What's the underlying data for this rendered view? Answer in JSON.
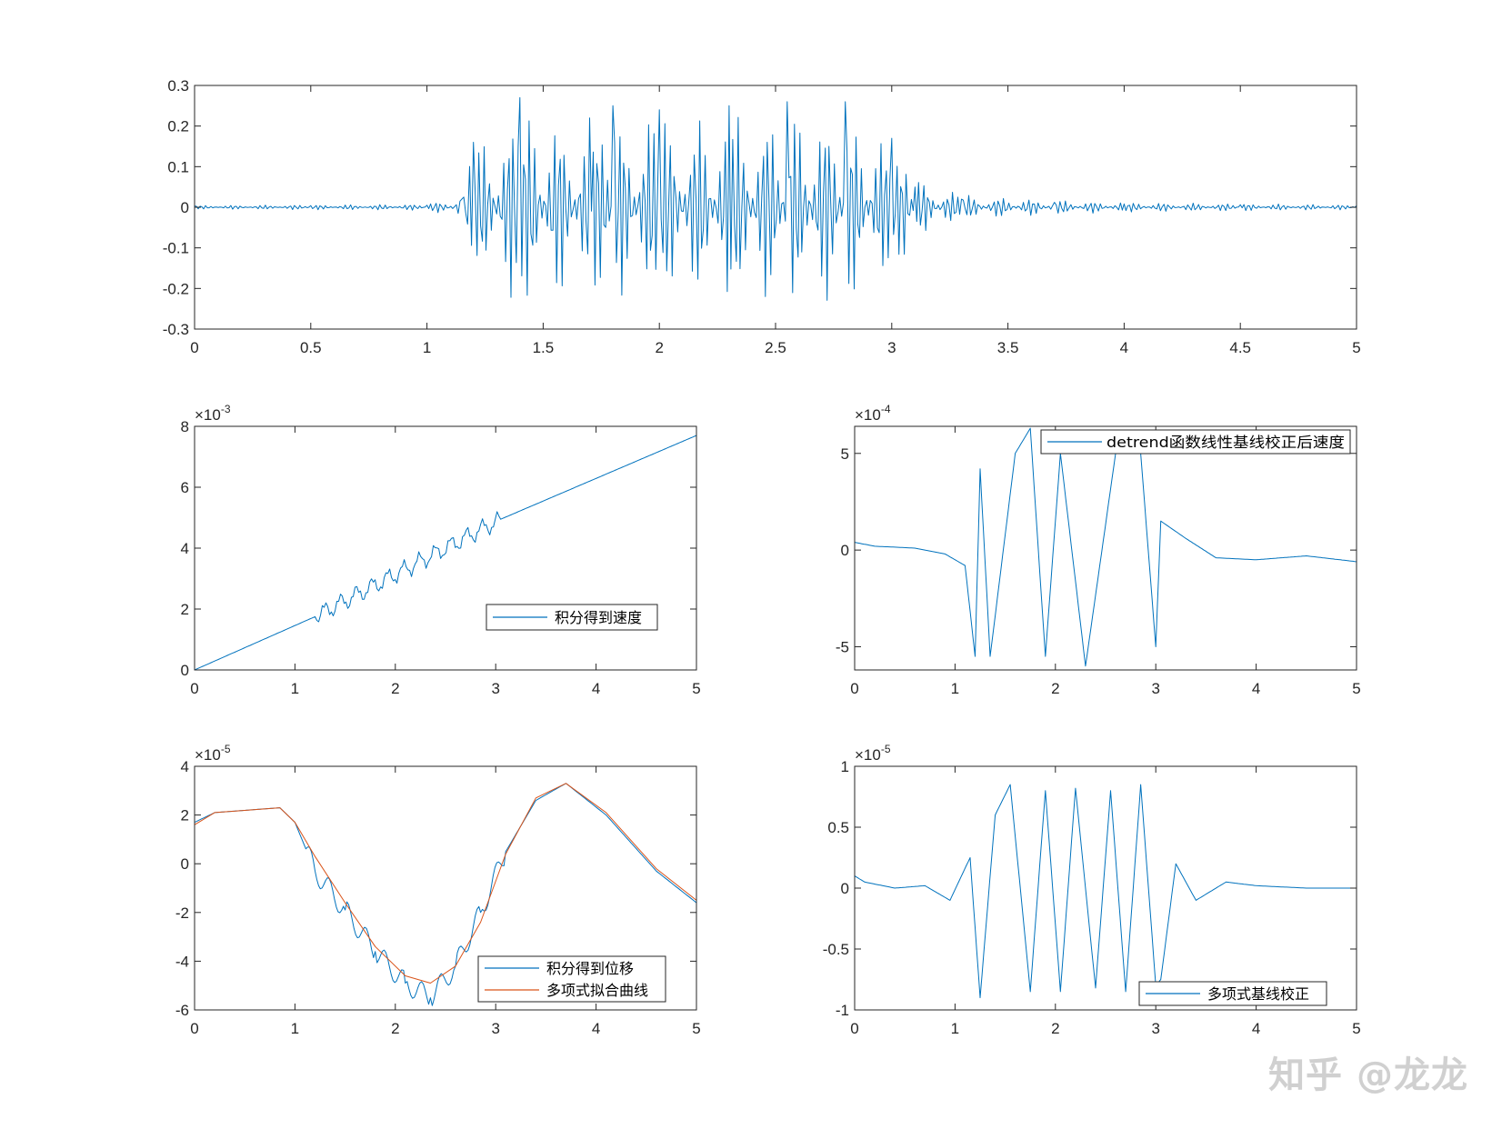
{
  "watermark": "知乎 @龙龙",
  "colors": {
    "series1": "#0072BD",
    "series2": "#D95319",
    "axis": "#262626",
    "background": "#FFFFFF"
  },
  "chart_data": [
    {
      "id": "acceleration",
      "type": "line",
      "xlim": [
        0,
        5
      ],
      "ylim": [
        -0.3,
        0.3
      ],
      "xticks": [
        0,
        0.5,
        1,
        1.5,
        2,
        2.5,
        3,
        3.5,
        4,
        4.5,
        5
      ],
      "xtick_labels": [
        "0",
        "0.5",
        "1",
        "1.5",
        "2",
        "2.5",
        "3",
        "3.5",
        "4",
        "4.5",
        "5"
      ],
      "yticks": [
        -0.3,
        -0.2,
        -0.1,
        0,
        0.1,
        0.2,
        0.3
      ],
      "ytick_labels": [
        "-0.3",
        "-0.2",
        "-0.1",
        "0",
        "0.1",
        "0.2",
        "0.3"
      ],
      "exponent": "",
      "grid": false,
      "legend": null,
      "series": [
        {
          "color": "#0072BD",
          "x": [
            0,
            0.5,
            1.0,
            1.15,
            1.2,
            1.4,
            1.7,
            1.8,
            2.0,
            2.3,
            2.55,
            2.8,
            3.0,
            3.1,
            3.3,
            3.7,
            4.0,
            4.5,
            5.0
          ],
          "y": [
            0.003,
            0.004,
            0.005,
            0.02,
            0.16,
            0.27,
            0.22,
            0.25,
            0.24,
            0.25,
            0.26,
            0.26,
            0.17,
            0.05,
            0.02,
            0.012,
            0.008,
            0.006,
            0.004
          ]
        }
      ]
    },
    {
      "id": "velocity",
      "type": "line",
      "xlim": [
        0,
        5
      ],
      "ylim": [
        0,
        8
      ],
      "xticks": [
        0,
        1,
        2,
        3,
        4,
        5
      ],
      "xtick_labels": [
        "0",
        "1",
        "2",
        "3",
        "4",
        "5"
      ],
      "yticks": [
        0,
        2,
        4,
        6,
        8
      ],
      "ytick_labels": [
        "0",
        "2",
        "4",
        "6",
        "8"
      ],
      "exponent": "-3",
      "grid": false,
      "legend": "bottom-right",
      "series": [
        {
          "name": "积分得到速度",
          "color": "#0072BD",
          "x": [
            0,
            1.2,
            3.05,
            5.0
          ],
          "y": [
            0.0,
            1.75,
            4.95,
            7.7
          ]
        }
      ]
    },
    {
      "id": "velocity_detrended",
      "type": "line",
      "xlim": [
        0,
        5
      ],
      "ylim": [
        -6.2,
        6.4
      ],
      "xticks": [
        0,
        1,
        2,
        3,
        4,
        5
      ],
      "xtick_labels": [
        "0",
        "1",
        "2",
        "3",
        "4",
        "5"
      ],
      "yticks": [
        -5,
        0,
        5
      ],
      "ytick_labels": [
        "-5",
        "0",
        "5"
      ],
      "exponent": "-4",
      "grid": false,
      "legend": "top-right",
      "series": [
        {
          "name": "detrend函数线性基线校正后速度",
          "color": "#0072BD",
          "x": [
            0,
            0.2,
            0.6,
            0.9,
            1.1,
            1.2,
            1.25,
            1.35,
            1.6,
            1.75,
            1.9,
            2.05,
            2.3,
            2.6,
            2.7,
            2.85,
            3.0,
            3.05,
            3.3,
            3.6,
            4.0,
            4.5,
            5.0
          ],
          "y": [
            0.4,
            0.2,
            0.1,
            -0.2,
            -0.8,
            -5.5,
            4.2,
            -5.5,
            5.0,
            6.3,
            -5.5,
            5.0,
            -6.0,
            5.0,
            5.0,
            5.0,
            -5.0,
            1.5,
            0.6,
            -0.4,
            -0.5,
            -0.3,
            -0.6
          ]
        }
      ]
    },
    {
      "id": "displacement",
      "type": "line",
      "xlim": [
        0,
        5
      ],
      "ylim": [
        -6,
        4
      ],
      "xticks": [
        0,
        1,
        2,
        3,
        4,
        5
      ],
      "xtick_labels": [
        "0",
        "1",
        "2",
        "3",
        "4",
        "5"
      ],
      "yticks": [
        -6,
        -4,
        -2,
        0,
        2,
        4
      ],
      "ytick_labels": [
        "-6",
        "-4",
        "-2",
        "0",
        "2",
        "4"
      ],
      "exponent": "-5",
      "grid": false,
      "legend": "bottom-right",
      "series": [
        {
          "name": "积分得到位移",
          "color": "#0072BD",
          "x": [
            0,
            0.2,
            0.85,
            1.0,
            1.2,
            1.5,
            1.8,
            2.1,
            2.35,
            2.6,
            2.85,
            3.1,
            3.4,
            3.7,
            4.1,
            4.6,
            5.0
          ],
          "y": [
            1.7,
            2.1,
            2.3,
            1.7,
            -0.3,
            -1.9,
            -3.6,
            -4.9,
            -5.5,
            -4.2,
            -2.0,
            0.5,
            2.6,
            3.3,
            2.0,
            -0.3,
            -1.6
          ]
        },
        {
          "name": "多项式拟合曲线",
          "color": "#D95319",
          "x": [
            0,
            0.2,
            0.85,
            1.0,
            1.2,
            1.5,
            1.8,
            2.1,
            2.35,
            2.6,
            2.85,
            3.1,
            3.4,
            3.7,
            4.1,
            4.6,
            5.0
          ],
          "y": [
            1.6,
            2.1,
            2.3,
            1.7,
            0.3,
            -1.6,
            -3.4,
            -4.6,
            -4.9,
            -4.2,
            -2.4,
            0.4,
            2.7,
            3.3,
            2.1,
            -0.2,
            -1.5
          ]
        }
      ]
    },
    {
      "id": "displacement_corrected",
      "type": "line",
      "xlim": [
        0,
        5
      ],
      "ylim": [
        -1,
        1
      ],
      "xticks": [
        0,
        1,
        2,
        3,
        4,
        5
      ],
      "xtick_labels": [
        "0",
        "1",
        "2",
        "3",
        "4",
        "5"
      ],
      "yticks": [
        -1,
        -0.5,
        0,
        0.5,
        1
      ],
      "ytick_labels": [
        "-1",
        "-0.5",
        "0",
        "0.5",
        "1"
      ],
      "exponent": "-5",
      "grid": false,
      "legend": "bottom-right",
      "series": [
        {
          "name": "多项式基线校正",
          "color": "#0072BD",
          "x": [
            0,
            0.1,
            0.4,
            0.7,
            0.95,
            1.15,
            1.25,
            1.4,
            1.55,
            1.75,
            1.9,
            2.05,
            2.2,
            2.4,
            2.55,
            2.7,
            2.85,
            3.0,
            3.05,
            3.2,
            3.4,
            3.7,
            4.0,
            4.5,
            5.0
          ],
          "y": [
            0.1,
            0.05,
            0.0,
            0.02,
            -0.1,
            0.25,
            -0.9,
            0.6,
            0.85,
            -0.85,
            0.8,
            -0.85,
            0.82,
            -0.82,
            0.8,
            -0.85,
            0.85,
            -0.8,
            -0.75,
            0.2,
            -0.1,
            0.05,
            0.02,
            0.0,
            0.0
          ]
        }
      ]
    }
  ]
}
